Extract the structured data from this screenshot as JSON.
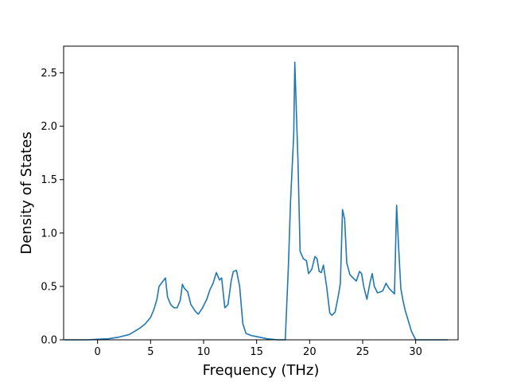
{
  "chart_data": {
    "type": "line",
    "title": "",
    "xlabel": "Frequency (THz)",
    "ylabel": "Density of States",
    "xlim": [
      -3.2,
      34.0
    ],
    "ylim": [
      0.0,
      2.75
    ],
    "xticks": [
      0,
      5,
      10,
      15,
      20,
      25,
      30
    ],
    "yticks": [
      0.0,
      0.5,
      1.0,
      1.5,
      2.0,
      2.5
    ],
    "grid": false,
    "legend": "none",
    "series": [
      {
        "color": "#1f77b4",
        "x": [
          -3.1,
          -2,
          -1,
          0,
          1,
          2,
          3,
          3.5,
          4,
          4.5,
          5,
          5.3,
          5.6,
          5.8,
          6.1,
          6.4,
          6.6,
          6.9,
          7.2,
          7.5,
          7.8,
          8.0,
          8.2,
          8.5,
          8.8,
          9.2,
          9.5,
          9.9,
          10.3,
          10.6,
          10.9,
          11.2,
          11.5,
          11.7,
          12.0,
          12.3,
          12.6,
          12.8,
          13.1,
          13.4,
          13.7,
          14.0,
          14.5,
          15,
          16,
          17,
          17.7,
          18.0,
          18.2,
          18.5,
          18.6,
          18.9,
          19.1,
          19.4,
          19.7,
          19.9,
          20.2,
          20.5,
          20.7,
          20.9,
          21.1,
          21.3,
          21.6,
          21.9,
          22.1,
          22.4,
          22.7,
          22.9,
          23.1,
          23.3,
          23.5,
          23.8,
          24.1,
          24.4,
          24.7,
          24.9,
          25.1,
          25.4,
          25.7,
          25.9,
          26.1,
          26.4,
          26.7,
          26.9,
          27.2,
          27.5,
          27.8,
          28.0,
          28.2,
          28.4,
          28.6,
          28.8,
          29.0,
          29.3,
          29.6,
          30.0,
          31,
          32,
          33.0
        ],
        "values": [
          0.0,
          0.0,
          0.0,
          0.005,
          0.01,
          0.025,
          0.05,
          0.08,
          0.11,
          0.15,
          0.21,
          0.28,
          0.38,
          0.5,
          0.54,
          0.58,
          0.4,
          0.33,
          0.3,
          0.3,
          0.37,
          0.52,
          0.48,
          0.45,
          0.33,
          0.27,
          0.24,
          0.3,
          0.38,
          0.47,
          0.53,
          0.63,
          0.56,
          0.58,
          0.3,
          0.33,
          0.55,
          0.64,
          0.65,
          0.5,
          0.15,
          0.06,
          0.04,
          0.03,
          0.01,
          0.0,
          0.0,
          0.7,
          1.3,
          1.92,
          2.6,
          1.67,
          0.83,
          0.76,
          0.74,
          0.62,
          0.66,
          0.78,
          0.76,
          0.64,
          0.63,
          0.7,
          0.5,
          0.25,
          0.23,
          0.26,
          0.41,
          0.53,
          1.22,
          1.13,
          0.72,
          0.61,
          0.58,
          0.55,
          0.64,
          0.62,
          0.5,
          0.38,
          0.54,
          0.62,
          0.5,
          0.44,
          0.45,
          0.46,
          0.53,
          0.48,
          0.45,
          0.43,
          1.26,
          0.85,
          0.48,
          0.37,
          0.28,
          0.18,
          0.08,
          0.0,
          0.0,
          0.0,
          0.0
        ]
      }
    ]
  }
}
